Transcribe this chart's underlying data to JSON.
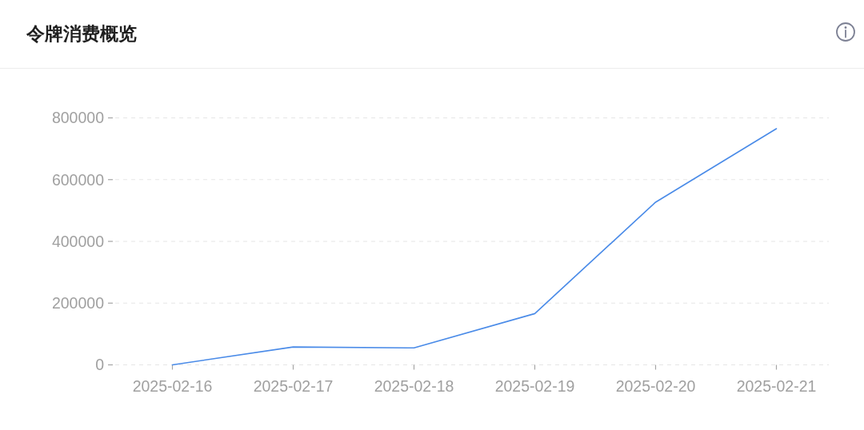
{
  "chart_data": {
    "type": "line",
    "title": "令牌消费概览",
    "categories": [
      "2025-02-16",
      "2025-02-17",
      "2025-02-18",
      "2025-02-19",
      "2025-02-20",
      "2025-02-21"
    ],
    "values": [
      0,
      58000,
      55000,
      166000,
      527000,
      765000
    ],
    "color": "#4a8be8",
    "ylim": [
      0,
      800000
    ],
    "yticks": [
      0,
      200000,
      400000,
      600000,
      800000
    ],
    "grid": "y"
  }
}
